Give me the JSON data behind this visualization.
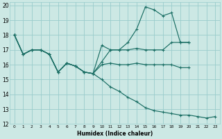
{
  "xlabel": "Humidex (Indice chaleur)",
  "bg_color": "#cce8e4",
  "grid_color": "#99cccc",
  "line_color": "#1a6e64",
  "xlim": [
    -0.5,
    23.5
  ],
  "ylim": [
    12,
    20.2
  ],
  "yticks": [
    12,
    13,
    14,
    15,
    16,
    17,
    18,
    19,
    20
  ],
  "xticks": [
    0,
    1,
    2,
    3,
    4,
    5,
    6,
    7,
    8,
    9,
    10,
    11,
    12,
    13,
    14,
    15,
    16,
    17,
    18,
    19,
    20,
    21,
    22,
    23
  ],
  "lines": [
    {
      "x": [
        0,
        1,
        2,
        3,
        4,
        5,
        6,
        7,
        8,
        9,
        10,
        11,
        12,
        13,
        14,
        15,
        16,
        17,
        18,
        19,
        20,
        21,
        22,
        23
      ],
      "y": [
        18,
        16.7,
        17,
        17,
        16.7,
        15.5,
        16.1,
        15.9,
        15.5,
        15.4,
        15.0,
        14.5,
        14.2,
        13.8,
        13.5,
        13.1,
        12.9,
        12.8,
        12.7,
        12.6,
        12.6,
        12.5,
        12.4,
        12.5
      ]
    },
    {
      "x": [
        0,
        1,
        2,
        3,
        4,
        5,
        6,
        7,
        8,
        9,
        10,
        11,
        12,
        13,
        14,
        15,
        16,
        17,
        18,
        19,
        20
      ],
      "y": [
        18,
        16.7,
        17,
        17,
        16.7,
        15.5,
        16.1,
        15.9,
        15.5,
        15.4,
        17.3,
        17.0,
        17.0,
        17.5,
        18.4,
        19.9,
        19.7,
        19.3,
        19.5,
        17.5,
        17.5
      ]
    },
    {
      "x": [
        0,
        1,
        2,
        3,
        4,
        5,
        6,
        7,
        8,
        9,
        10,
        11,
        12,
        13,
        14,
        15,
        16,
        17,
        18,
        19,
        20
      ],
      "y": [
        18,
        16.7,
        17,
        17,
        16.7,
        15.5,
        16.1,
        15.9,
        15.5,
        15.4,
        16.2,
        17.0,
        17.0,
        17.0,
        17.1,
        17.0,
        17.0,
        17.0,
        17.5,
        17.5,
        17.5
      ]
    },
    {
      "x": [
        0,
        1,
        2,
        3,
        4,
        5,
        6,
        7,
        8,
        9,
        10,
        11,
        12,
        13,
        14,
        15,
        16,
        17,
        18,
        19,
        20
      ],
      "y": [
        18,
        16.7,
        17,
        17,
        16.7,
        15.5,
        16.1,
        15.9,
        15.5,
        15.4,
        16.0,
        16.1,
        16.0,
        16.0,
        16.1,
        16.0,
        16.0,
        16.0,
        16.0,
        15.8,
        15.8
      ]
    }
  ]
}
